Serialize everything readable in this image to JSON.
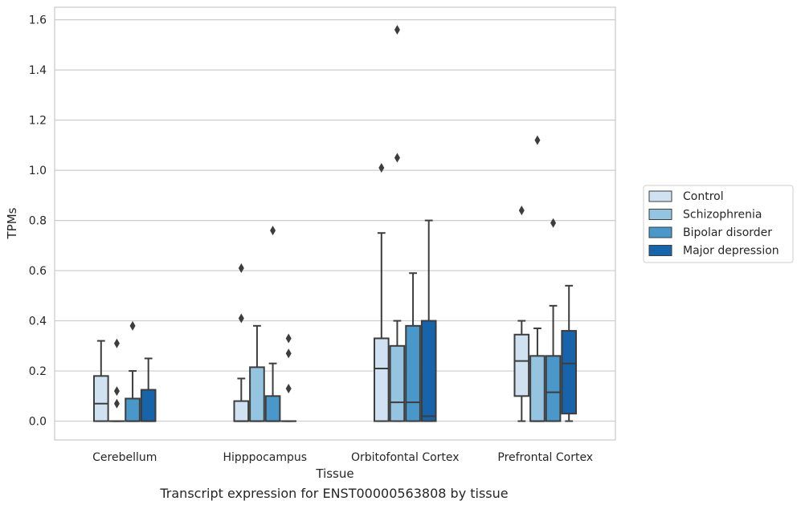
{
  "chart_data": {
    "type": "boxplot",
    "xlabel": "Tissue",
    "ylabel": "TPMs",
    "caption": "Transcript expression for ENST00000563808 by tissue",
    "ylim": [
      -0.075,
      1.65
    ],
    "yticks": [
      "0.0",
      "0.2",
      "0.4",
      "0.6",
      "0.8",
      "1.0",
      "1.2",
      "1.4",
      "1.6"
    ],
    "grid": true,
    "legend_position": "right",
    "categories": [
      "Cerebellum",
      "Hipppocampus",
      "Orbitofontal Cortex",
      "Prefrontal Cortex"
    ],
    "series": [
      {
        "name": "Control",
        "color": "#d0e1f2",
        "boxes": [
          {
            "whislo": 0.0,
            "q1": 0.0,
            "med": 0.07,
            "q3": 0.18,
            "whishi": 0.32,
            "fliers": []
          },
          {
            "whislo": 0.0,
            "q1": 0.0,
            "med": 0.0,
            "q3": 0.08,
            "whishi": 0.17,
            "fliers": [
              0.41,
              0.61
            ]
          },
          {
            "whislo": 0.0,
            "q1": 0.0,
            "med": 0.21,
            "q3": 0.33,
            "whishi": 0.75,
            "fliers": [
              1.01
            ]
          },
          {
            "whislo": 0.0,
            "q1": 0.1,
            "med": 0.24,
            "q3": 0.345,
            "whishi": 0.4,
            "fliers": [
              0.84
            ]
          }
        ]
      },
      {
        "name": "Schizophrenia",
        "color": "#94c4df",
        "boxes": [
          {
            "whislo": 0.0,
            "q1": 0.0,
            "med": 0.0,
            "q3": 0.0,
            "whishi": 0.0,
            "fliers": [
              0.07,
              0.12,
              0.31
            ]
          },
          {
            "whislo": 0.0,
            "q1": 0.0,
            "med": 0.0,
            "q3": 0.215,
            "whishi": 0.38,
            "fliers": []
          },
          {
            "whislo": 0.0,
            "q1": 0.0,
            "med": 0.075,
            "q3": 0.3,
            "whishi": 0.4,
            "fliers": [
              1.05,
              1.56
            ]
          },
          {
            "whislo": 0.0,
            "q1": 0.0,
            "med": 0.0,
            "q3": 0.26,
            "whishi": 0.37,
            "fliers": [
              1.12
            ]
          }
        ]
      },
      {
        "name": "Bipolar disorder",
        "color": "#4a98c9",
        "boxes": [
          {
            "whislo": 0.0,
            "q1": 0.0,
            "med": 0.0,
            "q3": 0.09,
            "whishi": 0.2,
            "fliers": [
              0.38
            ]
          },
          {
            "whislo": 0.0,
            "q1": 0.0,
            "med": 0.0,
            "q3": 0.1,
            "whishi": 0.23,
            "fliers": [
              0.76
            ]
          },
          {
            "whislo": 0.0,
            "q1": 0.0,
            "med": 0.075,
            "q3": 0.38,
            "whishi": 0.59,
            "fliers": []
          },
          {
            "whislo": 0.0,
            "q1": 0.0,
            "med": 0.115,
            "q3": 0.26,
            "whishi": 0.46,
            "fliers": [
              0.79
            ]
          }
        ]
      },
      {
        "name": "Major depression",
        "color": "#1764ab",
        "boxes": [
          {
            "whislo": 0.0,
            "q1": 0.0,
            "med": 0.0,
            "q3": 0.125,
            "whishi": 0.25,
            "fliers": []
          },
          {
            "whislo": 0.0,
            "q1": 0.0,
            "med": 0.0,
            "q3": 0.0,
            "whishi": 0.0,
            "fliers": [
              0.13,
              0.27,
              0.33
            ]
          },
          {
            "whislo": 0.0,
            "q1": 0.0,
            "med": 0.02,
            "q3": 0.4,
            "whishi": 0.8,
            "fliers": []
          },
          {
            "whislo": 0.0,
            "q1": 0.03,
            "med": 0.23,
            "q3": 0.36,
            "whishi": 0.54,
            "fliers": []
          }
        ]
      }
    ]
  }
}
